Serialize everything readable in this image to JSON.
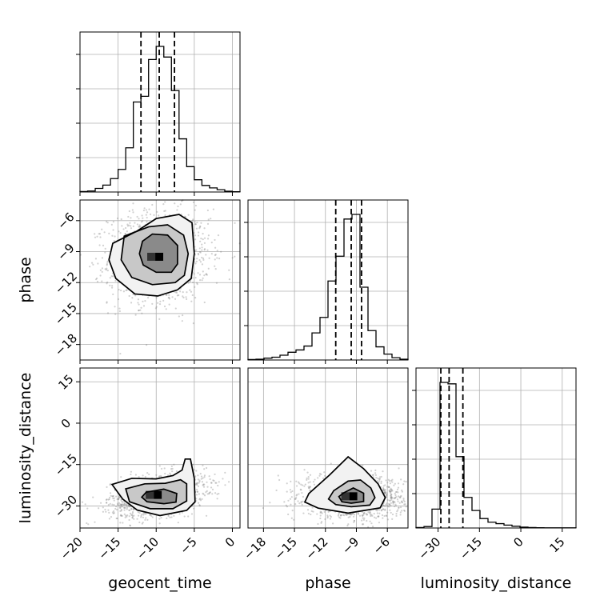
{
  "chart_data": {
    "type": "corner",
    "parameters": [
      "geocent_time",
      "phase",
      "luminosity_distance"
    ],
    "axis_labels": {
      "x": [
        "geocent_time",
        "phase",
        "luminosity_distance"
      ],
      "y": [
        "",
        "phase",
        "luminosity_distance"
      ]
    },
    "ranges": {
      "geocent_time": [
        -20,
        1
      ],
      "phase": [
        -19.5,
        -4
      ],
      "luminosity_distance": [
        -38,
        20
      ]
    },
    "ticks": {
      "geocent_time": [
        "-20",
        "-15",
        "-10",
        "-5",
        "0"
      ],
      "phase": [
        "-18",
        "-15",
        "-12",
        "-9",
        "-6"
      ],
      "luminosity_distance": [
        "-30",
        "-15",
        "0",
        "15"
      ]
    },
    "quantiles": {
      "geocent_time": [
        -12,
        -9.6,
        -7.6
      ],
      "phase": [
        -11,
        -9.5,
        -8.5
      ],
      "luminosity_distance": [
        -29,
        -26,
        -21
      ]
    },
    "histograms": {
      "geocent_time": {
        "bin_start": -20,
        "bin_width": 1,
        "counts": [
          0.3,
          0.6,
          2.2,
          4.2,
          8.2,
          13.8,
          27.0,
          55.0,
          58.5,
          81.0,
          89.0,
          82.5,
          62.0,
          32.5,
          15.5,
          7.5,
          4.0,
          2.5,
          1.4,
          0.5,
          0.2
        ]
      },
      "phase": {
        "bin_start": -19.5,
        "bin_width": 0.775,
        "counts": [
          0.3,
          0.5,
          1.2,
          1.8,
          3.1,
          5.0,
          6.5,
          9.0,
          17.5,
          27.5,
          51.0,
          67.0,
          91.0,
          94.0,
          47.0,
          19.0,
          8.5,
          3.8,
          1.5,
          0.5
        ]
      },
      "luminosity_distance": {
        "bin_start": -38,
        "bin_width": 2.9,
        "counts": [
          0.3,
          1.0,
          13.0,
          100.0,
          99.0,
          49.0,
          21.0,
          12.0,
          6.5,
          4.0,
          3.0,
          2.0,
          1.2,
          0.6,
          0.3,
          0.2,
          0.1,
          0.1,
          0.1,
          0.1
        ]
      }
    },
    "pairs": [
      {
        "x": "geocent_time",
        "y": "phase",
        "center": [
          -9.6,
          -9.5
        ],
        "spread": [
          3.0,
          2.0
        ],
        "corr": 0.05,
        "contours": [
          [
            [
              -11.8,
              -8.0
            ],
            [
              -10.5,
              -7.3
            ],
            [
              -8.5,
              -7.4
            ],
            [
              -7.2,
              -8.4
            ],
            [
              -7.2,
              -10.2
            ],
            [
              -8.0,
              -11.0
            ],
            [
              -10.0,
              -11.0
            ],
            [
              -11.7,
              -10.3
            ],
            [
              -12.2,
              -9.2
            ]
          ],
          [
            [
              -14.2,
              -7.5
            ],
            [
              -11.0,
              -6.6
            ],
            [
              -8.5,
              -6.4
            ],
            [
              -6.4,
              -7.4
            ],
            [
              -5.8,
              -9.2
            ],
            [
              -6.3,
              -11.3
            ],
            [
              -7.5,
              -12.0
            ],
            [
              -10.5,
              -12.2
            ],
            [
              -13.2,
              -11.5
            ],
            [
              -14.6,
              -9.8
            ]
          ],
          [
            [
              -15.7,
              -8.2
            ],
            [
              -12.5,
              -7.0
            ],
            [
              -10.0,
              -5.8
            ],
            [
              -7.0,
              -5.4
            ],
            [
              -5.3,
              -6.2
            ],
            [
              -5.0,
              -9.2
            ],
            [
              -5.4,
              -11.6
            ],
            [
              -7.2,
              -12.7
            ],
            [
              -9.8,
              -13.3
            ],
            [
              -12.8,
              -13.1
            ],
            [
              -15.3,
              -11.6
            ],
            [
              -16.2,
              -9.8
            ]
          ]
        ]
      },
      {
        "x": "geocent_time",
        "y": "luminosity_distance",
        "center": [
          -9.8,
          -26.0
        ],
        "spread": [
          2.8,
          3.5
        ],
        "corr": 0.35,
        "contours": [
          [
            [
              -11.3,
              -25.0
            ],
            [
              -9.0,
              -23.9
            ],
            [
              -7.3,
              -25.5
            ],
            [
              -7.4,
              -28.6
            ],
            [
              -9.0,
              -29.2
            ],
            [
              -11.2,
              -28.5
            ],
            [
              -11.9,
              -26.8
            ]
          ],
          [
            [
              -14.0,
              -23.8
            ],
            [
              -11.5,
              -22.0
            ],
            [
              -8.8,
              -21.8
            ],
            [
              -6.8,
              -20.5
            ],
            [
              -6.0,
              -22.0
            ],
            [
              -6.0,
              -28.2
            ],
            [
              -7.8,
              -31.0
            ],
            [
              -10.8,
              -31.0
            ],
            [
              -13.5,
              -28.5
            ]
          ],
          [
            [
              -15.8,
              -22.2
            ],
            [
              -13.2,
              -20.0
            ],
            [
              -10.0,
              -20.2
            ],
            [
              -7.8,
              -19.0
            ],
            [
              -6.6,
              -17.0
            ],
            [
              -6.2,
              -13.0
            ],
            [
              -5.5,
              -13.0
            ],
            [
              -5.0,
              -20.0
            ],
            [
              -4.9,
              -28.5
            ],
            [
              -6.0,
              -31.6
            ],
            [
              -9.5,
              -33.5
            ],
            [
              -12.5,
              -31.5
            ],
            [
              -14.4,
              -27.5
            ]
          ]
        ]
      },
      {
        "x": "phase",
        "y": "luminosity_distance",
        "center": [
          -9.3,
          -26.5
        ],
        "spread": [
          2.2,
          3.5
        ],
        "corr": -0.1,
        "contours": [
          [
            [
              -10.2,
              -25.2
            ],
            [
              -9.3,
              -23.5
            ],
            [
              -8.3,
              -25.4
            ],
            [
              -8.3,
              -28.4
            ],
            [
              -9.5,
              -29.0
            ],
            [
              -10.4,
              -28.5
            ],
            [
              -10.7,
              -26.6
            ]
          ],
          [
            [
              -11.2,
              -24.5
            ],
            [
              -9.8,
              -21.0
            ],
            [
              -8.6,
              -20.6
            ],
            [
              -7.6,
              -23.5
            ],
            [
              -7.2,
              -27.0
            ],
            [
              -7.7,
              -29.7
            ],
            [
              -9.5,
              -30.3
            ],
            [
              -11.0,
              -29.5
            ],
            [
              -11.7,
              -27.5
            ]
          ],
          [
            [
              -13.6,
              -25.5
            ],
            [
              -11.6,
              -18.8
            ],
            [
              -9.8,
              -12.2
            ],
            [
              -8.3,
              -16.5
            ],
            [
              -6.9,
              -22.0
            ],
            [
              -6.2,
              -27.0
            ],
            [
              -6.7,
              -30.7
            ],
            [
              -9.8,
              -32.6
            ],
            [
              -12.7,
              -30.8
            ],
            [
              -14.0,
              -28.6
            ]
          ]
        ]
      }
    ],
    "grid": true,
    "colors": {
      "line": "#000000",
      "grid": "#b0b0b0",
      "points": "#7a7a7a"
    }
  }
}
